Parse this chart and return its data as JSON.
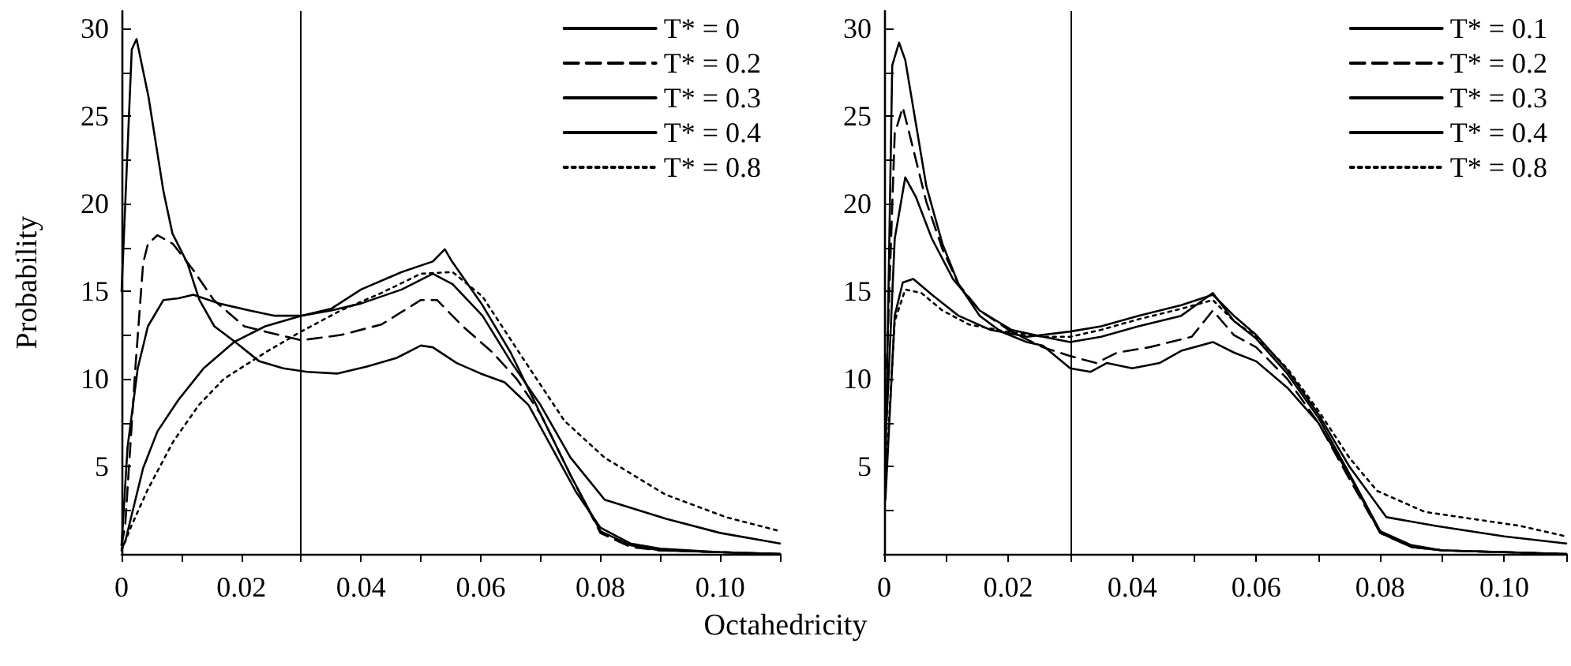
{
  "chart_data": [
    {
      "type": "line",
      "xlabel": "Octahedricity",
      "ylabel": "Probability",
      "legend": "top right",
      "xlim": [
        0,
        0.11
      ],
      "ylim": [
        0,
        31
      ],
      "xticks": [
        0,
        {
          "value": 0.01,
          "label": null
        },
        0.02,
        {
          "value": 0.03,
          "label": null
        },
        0.04,
        {
          "value": 0.05,
          "label": null
        },
        0.06,
        {
          "value": 0.07,
          "label": null
        },
        0.08,
        {
          "value": 0.09,
          "label": null
        },
        {
          "value": 0.1,
          "label": "0.10"
        },
        {
          "value": 0.11,
          "label": null
        }
      ],
      "yticks": [
        {
          "value": 2.5,
          "label": null
        },
        5,
        {
          "value": 7.5,
          "label": null
        },
        10,
        {
          "value": 12.5,
          "label": null
        },
        15,
        {
          "value": 17.5,
          "label": null
        },
        20,
        {
          "value": 22.5,
          "label": null
        },
        25,
        {
          "value": 27.5,
          "label": null
        },
        30
      ],
      "ref_lines": [
        {
          "axis": "x",
          "value": 0.03,
          "color": "#000000"
        }
      ],
      "series": [
        {
          "name": "T* = 0",
          "color": "#000000",
          "line_style": "solid",
          "x": [
            0,
            0.0017,
            0.0025,
            0.0045,
            0.007,
            0.0085,
            0.011,
            0.013,
            0.0155,
            0.019,
            0.023,
            0.027,
            0.031,
            0.036,
            0.041,
            0.046,
            0.05,
            0.052,
            0.056,
            0.06,
            0.064,
            0.068,
            0.072,
            0.076,
            0.08,
            0.085,
            0.09,
            0.1,
            0.11
          ],
          "values": [
            15,
            28.8,
            29.4,
            26.1,
            20.7,
            18.3,
            16.6,
            14.5,
            13,
            12.1,
            11,
            10.6,
            10.4,
            10.3,
            10.7,
            11.2,
            11.9,
            11.8,
            10.9,
            10.3,
            9.8,
            8.5,
            6,
            3.5,
            1.5,
            0.6,
            0.3,
            0.1,
            0
          ]
        },
        {
          "name": "T* = 0.2",
          "color": "#000000",
          "line_style": "dashed",
          "x": [
            0,
            0.0006,
            0.0023,
            0.0036,
            0.0044,
            0.006,
            0.0086,
            0.012,
            0.0154,
            0.0205,
            0.024,
            0.03,
            0.0366,
            0.0434,
            0.05,
            0.0527,
            0.057,
            0.062,
            0.066,
            0.07,
            0.075,
            0.08,
            0.085,
            0.09,
            0.1,
            0.11
          ],
          "values": [
            0.5,
            1.6,
            10.6,
            16.6,
            17.7,
            18.2,
            17.7,
            16.2,
            14.5,
            13,
            12.7,
            12.2,
            12.5,
            13.1,
            14.5,
            14.5,
            13,
            11.5,
            10,
            8,
            4.5,
            1.2,
            0.4,
            0.2,
            0.1,
            0
          ]
        },
        {
          "name": "T* = 0.3",
          "color": "#000000",
          "line_style": "solid",
          "x": [
            0,
            0.001,
            0.0027,
            0.0044,
            0.007,
            0.0095,
            0.012,
            0.0163,
            0.0214,
            0.0256,
            0.03,
            0.035,
            0.04,
            0.0468,
            0.052,
            0.054,
            0.0552,
            0.0603,
            0.065,
            0.07,
            0.075,
            0.08,
            0.085,
            0.09,
            0.1,
            0.11
          ],
          "values": [
            0.5,
            6.1,
            10.6,
            13,
            14.5,
            14.6,
            14.8,
            14.3,
            13.9,
            13.6,
            13.6,
            14,
            15.1,
            16.1,
            16.7,
            17.4,
            16.7,
            14.2,
            11.5,
            8,
            4.5,
            1.3,
            0.5,
            0.2,
            0.1,
            0
          ]
        },
        {
          "name": "T* = 0.4",
          "color": "#000000",
          "line_style": "solid",
          "x": [
            0,
            0.0006,
            0.0036,
            0.006,
            0.0095,
            0.0137,
            0.0188,
            0.024,
            0.03,
            0.035,
            0.04,
            0.0468,
            0.052,
            0.0553,
            0.0603,
            0.065,
            0.07,
            0.075,
            0.0807,
            0.091,
            0.1,
            0.11
          ],
          "values": [
            0.3,
            0.7,
            4.9,
            7,
            8.8,
            10.6,
            12.1,
            13,
            13.6,
            13.9,
            14.3,
            15.1,
            16,
            15.4,
            13.6,
            11,
            8.5,
            5.5,
            3.1,
            2,
            1.2,
            0.6
          ]
        },
        {
          "name": "T* = 0.8",
          "color": "#000000",
          "line_style": "dotted",
          "x": [
            0,
            0.0015,
            0.0044,
            0.0086,
            0.0129,
            0.0171,
            0.024,
            0.03,
            0.0366,
            0.0434,
            0.05,
            0.0553,
            0.0603,
            0.067,
            0.074,
            0.0807,
            0.0908,
            0.101,
            0.11
          ],
          "values": [
            0.2,
            1.5,
            3.7,
            6.4,
            8.5,
            10,
            11.5,
            12.7,
            13.9,
            14.9,
            16,
            16.1,
            14.7,
            11.2,
            7.6,
            5.5,
            3.4,
            2.1,
            1.3
          ]
        }
      ]
    },
    {
      "type": "line",
      "legend": "top right",
      "xlim": [
        0,
        0.11
      ],
      "ylim": [
        0,
        31
      ],
      "xticks": [
        0,
        {
          "value": 0.01,
          "label": null
        },
        0.02,
        {
          "value": 0.03,
          "label": null
        },
        0.04,
        {
          "value": 0.05,
          "label": null
        },
        0.06,
        {
          "value": 0.07,
          "label": null
        },
        0.08,
        {
          "value": 0.09,
          "label": null
        },
        {
          "value": 0.1,
          "label": "0.10"
        },
        {
          "value": 0.11,
          "label": null
        }
      ],
      "yticks": [
        {
          "value": 2.5,
          "label": null
        },
        5,
        {
          "value": 7.5,
          "label": null
        },
        10,
        {
          "value": 12.5,
          "label": null
        },
        15,
        {
          "value": 17.5,
          "label": null
        },
        20,
        {
          "value": 22.5,
          "label": null
        },
        25,
        {
          "value": 27.5,
          "label": null
        },
        30
      ],
      "ref_lines": [
        {
          "axis": "x",
          "value": 0.03,
          "color": "#000000"
        }
      ],
      "series": [
        {
          "name": "T* = 0.1",
          "color": "#000000",
          "line_style": "solid",
          "x": [
            0.0002,
            0.0013,
            0.0024,
            0.0034,
            0.0051,
            0.0068,
            0.0094,
            0.012,
            0.0154,
            0.0188,
            0.023,
            0.0256,
            0.03,
            0.0333,
            0.0359,
            0.04,
            0.0444,
            0.0479,
            0.053,
            0.0564,
            0.06,
            0.065,
            0.07,
            0.075,
            0.08,
            0.085,
            0.09,
            0.1,
            0.11
          ],
          "values": [
            4.6,
            27.9,
            29.2,
            28.2,
            24.6,
            21,
            17.7,
            15.4,
            13.6,
            12.7,
            12.1,
            11.9,
            10.6,
            10.4,
            10.9,
            10.6,
            10.9,
            11.6,
            12.1,
            11.5,
            11,
            9.5,
            7.5,
            4.5,
            1.2,
            0.4,
            0.2,
            0.1,
            0
          ]
        },
        {
          "name": "T* = 0.2",
          "color": "#000000",
          "line_style": "dashed",
          "x": [
            0.0004,
            0.0017,
            0.003,
            0.0047,
            0.0068,
            0.0094,
            0.012,
            0.0154,
            0.0205,
            0.0256,
            0.03,
            0.0342,
            0.0376,
            0.0427,
            0.0496,
            0.053,
            0.0564,
            0.06,
            0.065,
            0.07,
            0.075,
            0.08,
            0.085,
            0.09,
            0.1,
            0.11
          ],
          "values": [
            10.6,
            24,
            25.5,
            23.1,
            20.1,
            17.4,
            15.4,
            13.9,
            12.7,
            11.8,
            11.3,
            10.9,
            11.5,
            11.8,
            12.4,
            13.9,
            12.5,
            11.8,
            10,
            7.5,
            4.3,
            1.2,
            0.4,
            0.2,
            0.1,
            0
          ]
        },
        {
          "name": "T* = 0.3",
          "color": "#000000",
          "line_style": "solid",
          "x": [
            0.0004,
            0.0017,
            0.0034,
            0.0051,
            0.0077,
            0.0111,
            0.0154,
            0.0205,
            0.0256,
            0.03,
            0.035,
            0.041,
            0.0479,
            0.053,
            0.0564,
            0.06,
            0.065,
            0.07,
            0.075,
            0.08,
            0.085,
            0.09,
            0.1,
            0.11
          ],
          "values": [
            7.6,
            18,
            21.5,
            20.4,
            18,
            15.7,
            13.9,
            12.8,
            12.4,
            12.1,
            12.4,
            13,
            13.6,
            14.9,
            13.3,
            12.3,
            10.3,
            7.8,
            4.6,
            1.3,
            0.5,
            0.2,
            0.1,
            0
          ]
        },
        {
          "name": "T* = 0.4",
          "color": "#000000",
          "line_style": "solid",
          "x": [
            0.0002,
            0.0017,
            0.003,
            0.0047,
            0.0077,
            0.012,
            0.0171,
            0.0231,
            0.03,
            0.035,
            0.041,
            0.0479,
            0.053,
            0.0564,
            0.06,
            0.065,
            0.07,
            0.075,
            0.081,
            0.089,
            0.1,
            0.11
          ],
          "values": [
            3.1,
            13.6,
            15.5,
            15.7,
            14.8,
            13.6,
            12.8,
            12.4,
            12.7,
            13,
            13.6,
            14.2,
            14.8,
            13.6,
            12.5,
            10.5,
            8,
            5,
            2.1,
            1.6,
            1,
            0.6
          ]
        },
        {
          "name": "T* = 0.8",
          "color": "#000000",
          "line_style": "dotted",
          "x": [
            0.0002,
            0.0017,
            0.0034,
            0.006,
            0.0094,
            0.0137,
            0.0197,
            0.0256,
            0.03,
            0.035,
            0.041,
            0.0479,
            0.053,
            0.0564,
            0.06,
            0.065,
            0.07,
            0.075,
            0.0795,
            0.0872,
            0.1026,
            0.11
          ],
          "values": [
            4,
            13.3,
            15.1,
            14.9,
            13.9,
            13.1,
            12.7,
            12.4,
            12.4,
            12.8,
            13.4,
            14,
            14.5,
            13.3,
            12.4,
            10.6,
            8.2,
            5.5,
            3.6,
            2.4,
            1.6,
            1
          ]
        }
      ]
    }
  ]
}
